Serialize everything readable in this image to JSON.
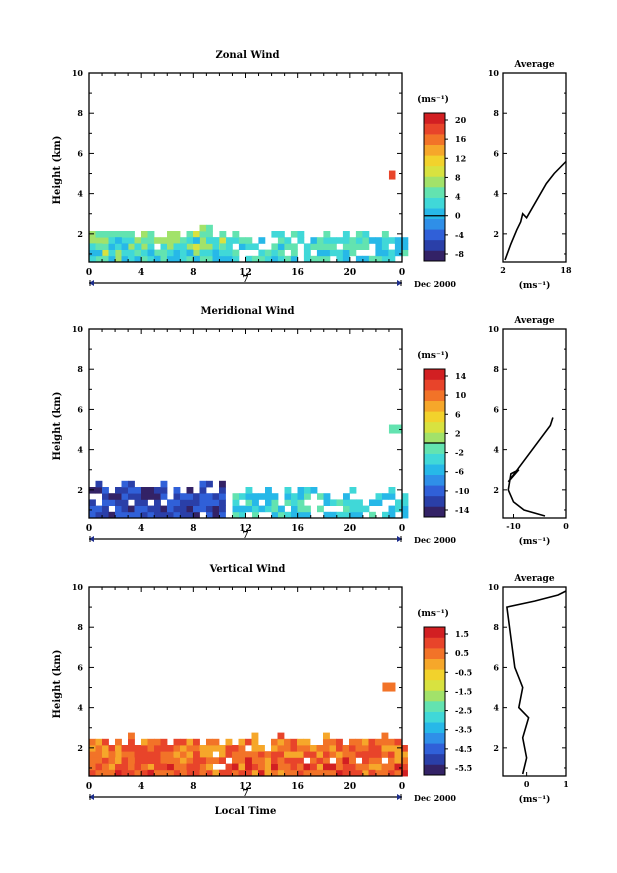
{
  "chart_data": [
    {
      "type": "heatmap",
      "title": "Zonal Wind",
      "ylabel": "Height (km)",
      "xlabel": "",
      "x_ticks": [
        "0",
        "4",
        "8",
        "12",
        "16",
        "20",
        "0"
      ],
      "y_ticks": [
        "2",
        "4",
        "6",
        "8",
        "10"
      ],
      "xlim": [
        0,
        24
      ],
      "ylim": [
        0.6,
        10
      ],
      "date_marker": "7",
      "date_label": "Dec 2000",
      "colorbar": {
        "unit_label": "(ms⁻¹)",
        "ticks": [
          "20",
          "16",
          "12",
          "8",
          "4",
          "0",
          "-4",
          "-8"
        ],
        "range": [
          -10,
          22
        ]
      },
      "data_regions": [
        {
          "x_start": 0,
          "x_end": 10,
          "y_top": 2.0,
          "value": 6
        },
        {
          "x_start": 0,
          "x_end": 10,
          "y_top": 1.4,
          "value": 2
        },
        {
          "x_start": 10,
          "x_end": 24,
          "y_top": 1.8,
          "value": 3
        },
        {
          "x_start": 23,
          "x_end": 23.5,
          "y_center": 4.9,
          "value": 18
        }
      ],
      "average_profile": {
        "title": "Average",
        "xlabel": "(ms⁻¹)",
        "x_ticks": [
          "2",
          "18"
        ],
        "y_ticks": [
          "2",
          "4",
          "6",
          "8",
          "10"
        ],
        "xlim": [
          2,
          18
        ],
        "points": [
          [
            2.5,
            0.7
          ],
          [
            4,
            1.5
          ],
          [
            5.5,
            2.2
          ],
          [
            6.5,
            2.6
          ],
          [
            7,
            3.0
          ],
          [
            8,
            2.8
          ],
          [
            13,
            4.5
          ],
          [
            15,
            5.0
          ],
          [
            18,
            5.6
          ]
        ]
      }
    },
    {
      "type": "heatmap",
      "title": "Meridional Wind",
      "ylabel": "Height (km)",
      "xlabel": "",
      "x_ticks": [
        "0",
        "4",
        "8",
        "12",
        "16",
        "20",
        "0"
      ],
      "y_ticks": [
        "2",
        "4",
        "6",
        "8",
        "10"
      ],
      "xlim": [
        0,
        24
      ],
      "ylim": [
        0.6,
        10
      ],
      "date_marker": "7",
      "date_label": "Dec 2000",
      "colorbar": {
        "unit_label": "(ms⁻¹)",
        "ticks": [
          "14",
          "10",
          "6",
          "2",
          "-2",
          "-6",
          "-10",
          "-14"
        ],
        "range": [
          -16,
          16
        ]
      },
      "data_regions": [
        {
          "x_start": 0,
          "x_end": 10,
          "y_top": 2.0,
          "value": -12
        },
        {
          "x_start": 11,
          "x_end": 24,
          "y_top": 1.8,
          "value": -4
        },
        {
          "x_start": 23,
          "x_end": 24,
          "y_center": 5.0,
          "value": -2
        }
      ],
      "average_profile": {
        "title": "Average",
        "xlabel": "(ms⁻¹)",
        "x_ticks": [
          "-10",
          "0"
        ],
        "y_ticks": [
          "2",
          "4",
          "6",
          "8",
          "10"
        ],
        "xlim": [
          -12,
          0
        ],
        "points": [
          [
            -4,
            0.7
          ],
          [
            -8,
            1.0
          ],
          [
            -10,
            1.4
          ],
          [
            -11,
            2.0
          ],
          [
            -10.5,
            2.8
          ],
          [
            -9,
            3.0
          ],
          [
            -11,
            2.4
          ],
          [
            -3,
            5.2
          ],
          [
            -2.5,
            5.6
          ]
        ]
      }
    },
    {
      "type": "heatmap",
      "title": "Vertical Wind",
      "ylabel": "Height (km)",
      "xlabel": "Local Time",
      "x_ticks": [
        "0",
        "4",
        "8",
        "12",
        "16",
        "20",
        "0"
      ],
      "y_ticks": [
        "2",
        "4",
        "6",
        "8",
        "10"
      ],
      "xlim": [
        0,
        24
      ],
      "ylim": [
        0.6,
        10
      ],
      "date_marker": "7",
      "date_label": "Dec 2000",
      "colorbar": {
        "unit_label": "(ms⁻¹)",
        "ticks": [
          "1.5",
          "0.5",
          "-0.5",
          "-1.5",
          "-2.5",
          "-3.5",
          "-4.5",
          "-5.5"
        ],
        "range": [
          -6,
          2
        ]
      },
      "data_regions": [
        {
          "x_start": 0,
          "x_end": 24,
          "y_top": 2.2,
          "value": 0.6
        },
        {
          "x_start": 0,
          "x_end": 24,
          "y_top": 1.3,
          "value": 0.9
        },
        {
          "x_start": 22.5,
          "x_end": 23.5,
          "y_center": 5.0,
          "value": 0.4
        }
      ],
      "average_profile": {
        "title": "Average",
        "xlabel": "(ms⁻¹)",
        "x_ticks": [
          "0",
          "1"
        ],
        "y_ticks": [
          "2",
          "4",
          "6",
          "8",
          "10"
        ],
        "xlim": [
          -0.6,
          1
        ],
        "points": [
          [
            -0.1,
            0.7
          ],
          [
            0,
            1.5
          ],
          [
            -0.1,
            2.5
          ],
          [
            0.05,
            3.5
          ],
          [
            -0.2,
            4.0
          ],
          [
            -0.1,
            5.0
          ],
          [
            -0.2,
            5.5
          ],
          [
            -0.3,
            6.0
          ],
          [
            -0.5,
            9.0
          ],
          [
            0.2,
            9.3
          ],
          [
            0.8,
            9.6
          ],
          [
            1,
            9.8
          ]
        ]
      }
    }
  ]
}
